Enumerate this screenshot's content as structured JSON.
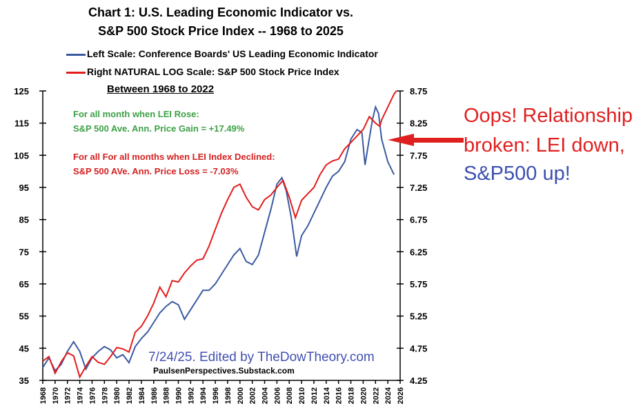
{
  "chart_data": {
    "type": "line",
    "title_line1": "Chart 1: U.S. Leading Economic Indicator vs.",
    "title_line2": "S&P 500 Stock Price Index -- 1968 to 2025",
    "legend": [
      {
        "label": "Left Scale: Conference Boards' US Leading Economic Indicator",
        "color": "#3a5aa0"
      },
      {
        "label": "Right NATURAL LOG Scale: S&P 500 Stock Price Index",
        "color": "#e41a1a"
      }
    ],
    "subheading": "Between 1968 to 2022",
    "stats": {
      "rose_line1": "For all month when LEI Rose:",
      "rose_line2": "S&P 500 Ave. Ann. Price Gain = +17.49%",
      "declined_line1": "For all For all months when LEI Index Declined:",
      "declined_line2": "S&P 500 AVe. Ann. Price Loss  = -7.03%"
    },
    "left_axis": {
      "min": 35,
      "max": 125,
      "ticks": [
        35,
        45,
        55,
        65,
        75,
        85,
        95,
        105,
        115,
        125
      ]
    },
    "right_axis": {
      "min": 4.25,
      "max": 8.75,
      "ticks": [
        "4.25",
        "4.75",
        "5.25",
        "5.75",
        "6.25",
        "6.75",
        "7.25",
        "7.75",
        "8.25",
        "8.75"
      ]
    },
    "x_axis": {
      "min": 1968,
      "max": 2026,
      "ticks": [
        "1968",
        "1970",
        "1972",
        "1974",
        "1976",
        "1978",
        "1980",
        "1982",
        "1984",
        "1986",
        "1988",
        "1990",
        "1992",
        "1994",
        "1996",
        "1998",
        "2000",
        "2002",
        "2004",
        "2006",
        "2008",
        "2010",
        "2012",
        "2014",
        "2016",
        "2018",
        "2020",
        "2022",
        "2024",
        "2026"
      ]
    },
    "series": [
      {
        "name": "Left Scale: Conference Boards' US Leading Economic Indicator",
        "axis": "left",
        "color": "#3a5aa0",
        "points": [
          [
            1968,
            39
          ],
          [
            1969,
            42
          ],
          [
            1970,
            38
          ],
          [
            1971,
            40
          ],
          [
            1972,
            44
          ],
          [
            1973,
            47
          ],
          [
            1974,
            44
          ],
          [
            1975,
            38.5
          ],
          [
            1976,
            42
          ],
          [
            1977,
            44
          ],
          [
            1978,
            45.5
          ],
          [
            1979,
            44.5
          ],
          [
            1980,
            42
          ],
          [
            1981,
            43
          ],
          [
            1982,
            40.5
          ],
          [
            1983,
            45.5
          ],
          [
            1984,
            48
          ],
          [
            1985,
            50
          ],
          [
            1986,
            53
          ],
          [
            1987,
            56
          ],
          [
            1988,
            58
          ],
          [
            1989,
            59.5
          ],
          [
            1990,
            58.5
          ],
          [
            1991,
            54
          ],
          [
            1992,
            57
          ],
          [
            1993,
            60
          ],
          [
            1994,
            63
          ],
          [
            1995,
            63
          ],
          [
            1996,
            65
          ],
          [
            1997,
            68
          ],
          [
            1998,
            71
          ],
          [
            1999,
            74
          ],
          [
            2000,
            76
          ],
          [
            2001,
            72
          ],
          [
            2002,
            71
          ],
          [
            2003,
            74
          ],
          [
            2004,
            81
          ],
          [
            2005,
            88
          ],
          [
            2006,
            96
          ],
          [
            2006.8,
            98
          ],
          [
            2007.5,
            94
          ],
          [
            2008.3,
            86
          ],
          [
            2009.2,
            73.5
          ],
          [
            2010,
            80
          ],
          [
            2011,
            83
          ],
          [
            2012,
            87
          ],
          [
            2013,
            91
          ],
          [
            2014,
            95
          ],
          [
            2015,
            98.5
          ],
          [
            2016,
            100
          ],
          [
            2017,
            103
          ],
          [
            2018,
            110
          ],
          [
            2019,
            113
          ],
          [
            2019.8,
            112
          ],
          [
            2020.3,
            102
          ],
          [
            2020.8,
            108
          ],
          [
            2021.5,
            116
          ],
          [
            2022.0,
            120
          ],
          [
            2022.5,
            118
          ],
          [
            2023,
            110
          ],
          [
            2024,
            103
          ],
          [
            2025,
            99
          ]
        ]
      },
      {
        "name": "Right NATURAL LOG Scale: S&P 500 Stock Price Index",
        "axis": "right",
        "color": "#e41a1a",
        "points": [
          [
            1968,
            4.55
          ],
          [
            1969,
            4.62
          ],
          [
            1970,
            4.36
          ],
          [
            1971,
            4.54
          ],
          [
            1972,
            4.68
          ],
          [
            1973,
            4.63
          ],
          [
            1974,
            4.3
          ],
          [
            1975,
            4.47
          ],
          [
            1976,
            4.62
          ],
          [
            1977,
            4.53
          ],
          [
            1978,
            4.5
          ],
          [
            1979,
            4.62
          ],
          [
            1980,
            4.76
          ],
          [
            1981,
            4.74
          ],
          [
            1982,
            4.69
          ],
          [
            1983,
            5.0
          ],
          [
            1984,
            5.09
          ],
          [
            1985,
            5.25
          ],
          [
            1986,
            5.45
          ],
          [
            1987,
            5.7
          ],
          [
            1988,
            5.55
          ],
          [
            1989,
            5.8
          ],
          [
            1990,
            5.78
          ],
          [
            1991,
            5.92
          ],
          [
            1992,
            6.03
          ],
          [
            1993,
            6.12
          ],
          [
            1994,
            6.14
          ],
          [
            1995,
            6.34
          ],
          [
            1996,
            6.6
          ],
          [
            1997,
            6.85
          ],
          [
            1998,
            7.06
          ],
          [
            1999,
            7.25
          ],
          [
            2000,
            7.3
          ],
          [
            2001,
            7.1
          ],
          [
            2002,
            6.95
          ],
          [
            2003,
            6.9
          ],
          [
            2004,
            7.06
          ],
          [
            2005,
            7.13
          ],
          [
            2006,
            7.25
          ],
          [
            2007,
            7.36
          ],
          [
            2008,
            7.1
          ],
          [
            2009,
            6.78
          ],
          [
            2010,
            7.05
          ],
          [
            2011,
            7.15
          ],
          [
            2012,
            7.25
          ],
          [
            2013,
            7.45
          ],
          [
            2014,
            7.6
          ],
          [
            2015,
            7.66
          ],
          [
            2016,
            7.69
          ],
          [
            2017,
            7.85
          ],
          [
            2018,
            7.95
          ],
          [
            2019,
            8.05
          ],
          [
            2020,
            8.15
          ],
          [
            2021,
            8.35
          ],
          [
            2022,
            8.25
          ],
          [
            2022.7,
            8.2
          ],
          [
            2023,
            8.3
          ],
          [
            2024,
            8.5
          ],
          [
            2025,
            8.7
          ],
          [
            2025.4,
            8.75
          ]
        ]
      }
    ],
    "annotations": {
      "oops_line1": "Oops! Relationship",
      "oops_line2": "broken: LEI down,",
      "oops_line3": "S&P500 up!",
      "edited": "7/24/25. Edited by TheDowTheory.com",
      "source": "PaulsenPerspectives.Substack.com"
    },
    "grid": false
  },
  "colors": {
    "lei": "#3a5aa0",
    "sp500": "#e41a1a",
    "stats_green": "#3ca046",
    "stats_red": "#d42020",
    "oops_red": "#e02020",
    "oops_blue": "#3b4fb0"
  }
}
